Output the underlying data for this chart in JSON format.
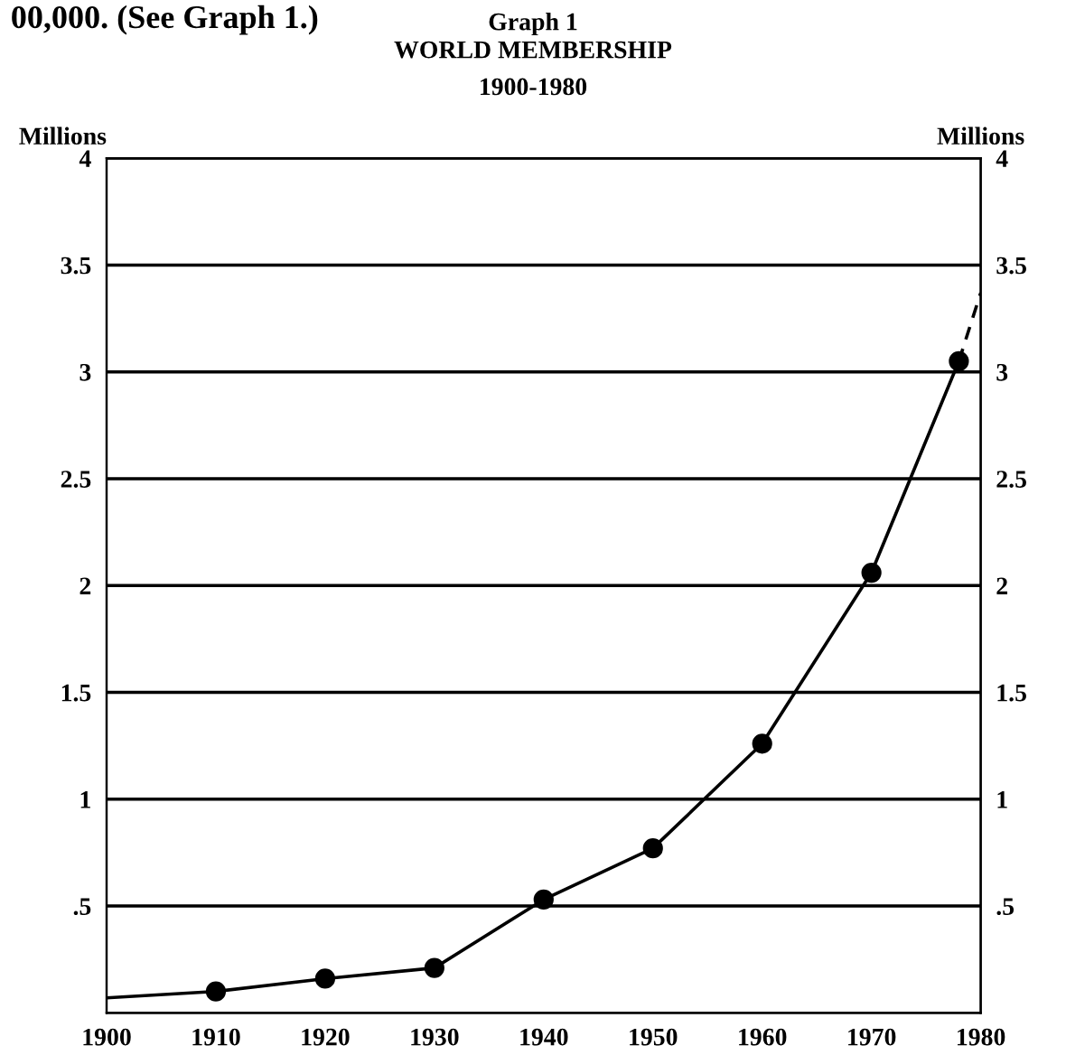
{
  "chart_data": {
    "type": "line",
    "title": "Graph 1\nWORLD MEMBERSHIP",
    "subtitle": "1900-1980",
    "ylabel": "Millions",
    "y2label": "Millions",
    "annotations": [
      "00,000. (See Graph 1.)"
    ],
    "series": [
      {
        "color": "#000000",
        "x": [
          1900,
          1910
        ],
        "values": [
          0.07,
          0.1
        ],
        "line_style": "solid"
      },
      {
        "color": "#000000",
        "x": [
          1910,
          1920,
          1930,
          1940,
          1950,
          1960,
          1970,
          1978
        ],
        "values": [
          0.1,
          0.16,
          0.21,
          0.53,
          0.77,
          1.26,
          2.06,
          3.05
        ],
        "marker": "circle",
        "line_style": "solid"
      },
      {
        "color": "#000000",
        "x": [
          1978,
          1980
        ],
        "values": [
          3.05,
          3.37
        ],
        "marker": "none",
        "line_style": "dashed"
      }
    ],
    "xlim": [
      1900,
      1980
    ],
    "xticks": [
      1900,
      1910,
      1920,
      1930,
      1940,
      1950,
      1960,
      1970,
      1980
    ],
    "ylim": [
      0,
      4
    ],
    "yticks": [
      {
        "value": 0.5,
        "label": ".5"
      },
      1,
      1.5,
      2,
      2.5,
      3,
      3.5,
      4
    ],
    "y2lim": [
      0,
      4
    ],
    "y2ticks": [
      {
        "value": 0.5,
        "label": ".5"
      },
      1,
      1.5,
      2,
      2.5,
      3,
      3.5,
      4
    ],
    "grid": "y",
    "legend": false
  }
}
